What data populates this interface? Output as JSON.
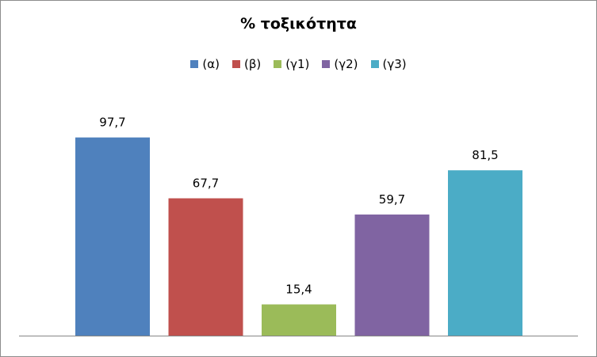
{
  "chart_data": {
    "type": "bar",
    "title": "% τοξικότητα",
    "xlabel": "",
    "ylabel": "",
    "ylim": [
      0,
      100
    ],
    "grid": false,
    "legend_position": "top",
    "categories": [
      ""
    ],
    "series": [
      {
        "name": "(α)",
        "values": [
          97.7
        ],
        "label": "97,7",
        "color": "#4f81bd"
      },
      {
        "name": "(β)",
        "values": [
          67.7
        ],
        "label": "67,7",
        "color": "#c0504d"
      },
      {
        "name": "(γ1)",
        "values": [
          15.4
        ],
        "label": "15,4",
        "color": "#9bbb59"
      },
      {
        "name": "(γ2)",
        "values": [
          59.7
        ],
        "label": "59,7",
        "color": "#8064a2"
      },
      {
        "name": "(γ3)",
        "values": [
          81.5
        ],
        "label": "81,5",
        "color": "#4bacc6"
      }
    ]
  }
}
